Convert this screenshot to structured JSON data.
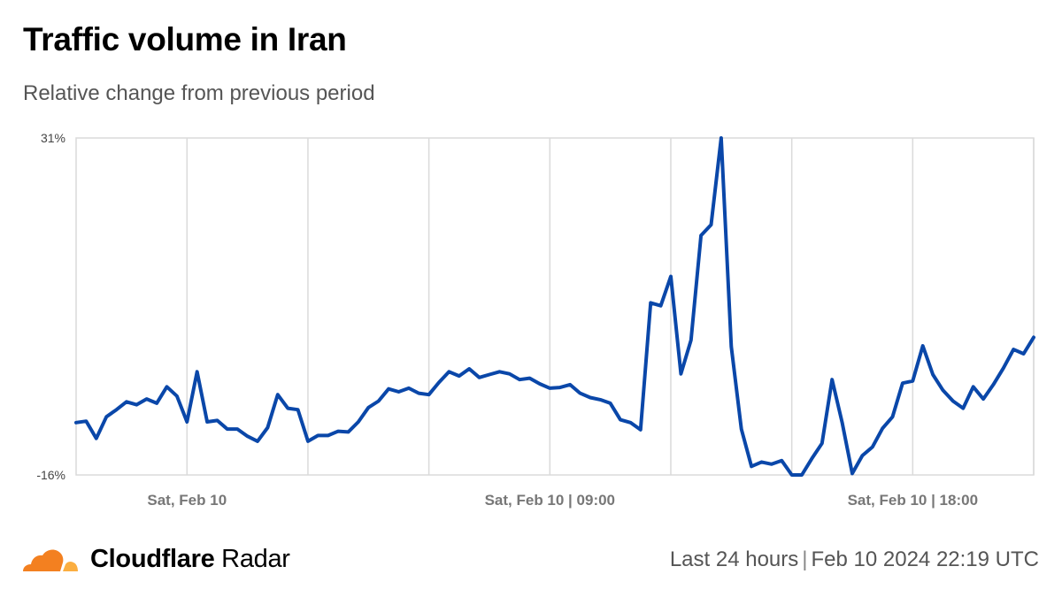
{
  "header": {
    "title": "Traffic volume in Iran",
    "subtitle": "Relative change from previous period"
  },
  "footer": {
    "brand_bold": "Cloudflare",
    "brand_light": "Radar",
    "range": "Last 24 hours",
    "timestamp": "Feb 10 2024 22:19 UTC"
  },
  "colors": {
    "line": "#0A47A9",
    "grid": "#DADADA",
    "cloud_orange": "#F38020",
    "cloud_light": "#FBAE40"
  },
  "chart_data": {
    "type": "line",
    "title": "Traffic volume in Iran",
    "subtitle": "Relative change from previous period",
    "ylim": [
      -16,
      31
    ],
    "ytick_labels": [
      "31%",
      "-16%"
    ],
    "ytick_values": [
      31,
      -16
    ],
    "xtick_labels": [
      "Sat, Feb 10",
      "Sat, Feb 10 | 09:00",
      "Sat, Feb 10 | 18:00"
    ],
    "xtick_indices": [
      11,
      47,
      83
    ],
    "grid": true,
    "series": [
      {
        "values": [
          -8.7,
          -8.5,
          -10.9,
          -7.9,
          -6.9,
          -5.8,
          -6.2,
          -5.4,
          -6.0,
          -3.7,
          -5.0,
          -8.6,
          -1.6,
          -8.6,
          -8.4,
          -9.6,
          -9.6,
          -10.6,
          -11.3,
          -9.4,
          -4.8,
          -6.7,
          -6.9,
          -11.3,
          -10.5,
          -10.5,
          -9.9,
          -10.0,
          -8.6,
          -6.6,
          -5.7,
          -4.0,
          -4.4,
          -3.9,
          -4.6,
          -4.8,
          -3.1,
          -1.6,
          -2.2,
          -1.2,
          -2.4,
          -2.0,
          -1.6,
          -1.9,
          -2.7,
          -2.5,
          -3.3,
          -3.9,
          -3.8,
          -3.4,
          -4.6,
          -5.2,
          -5.5,
          -6.0,
          -8.3,
          -8.7,
          -9.7,
          8.0,
          7.6,
          11.7,
          -1.9,
          2.8,
          17.4,
          18.9,
          31.0,
          1.9,
          -9.6,
          -14.8,
          -14.2,
          -14.5,
          -14.0,
          -16.0,
          -16.0,
          -13.7,
          -11.6,
          -2.7,
          -8.7,
          -15.8,
          -13.3,
          -12.1,
          -9.5,
          -7.9,
          -3.2,
          -2.9,
          2.0,
          -2.0,
          -4.2,
          -5.7,
          -6.7,
          -3.7,
          -5.4,
          -3.4,
          -1.1,
          1.5,
          0.9,
          3.2
        ]
      }
    ]
  }
}
